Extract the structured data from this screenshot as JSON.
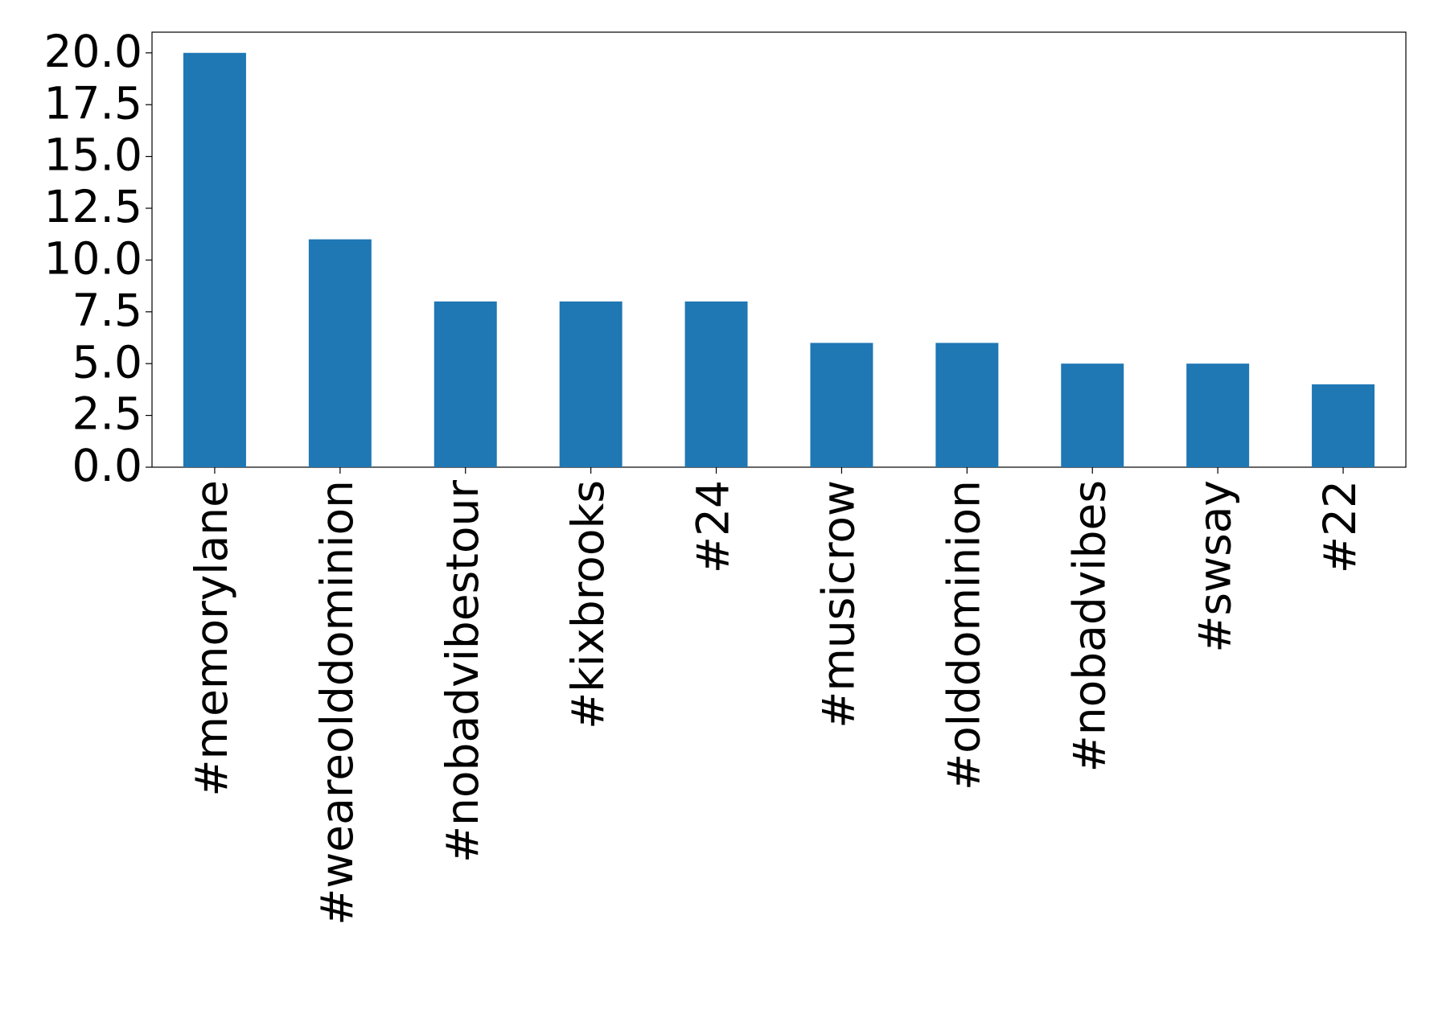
{
  "chart_data": {
    "type": "bar",
    "categories": [
      "#memorylane",
      "#weareolddominion",
      "#nobadvibestour",
      "#kixbrooks",
      "#24",
      "#musicrow",
      "#olddominion",
      "#nobadvibes",
      "#swsay",
      "#22"
    ],
    "values": [
      20,
      11,
      8,
      8,
      8,
      6,
      6,
      5,
      5,
      4
    ],
    "color": "#1f77b4",
    "ylim": [
      0,
      21
    ],
    "yticks": [
      {
        "value": 0,
        "label": "0.0"
      },
      {
        "value": 2.5,
        "label": "2.5"
      },
      {
        "value": 5,
        "label": "5.0"
      },
      {
        "value": 7.5,
        "label": "7.5"
      },
      {
        "value": 10,
        "label": "10.0"
      },
      {
        "value": 12.5,
        "label": "12.5"
      },
      {
        "value": 15,
        "label": "15.0"
      },
      {
        "value": 17.5,
        "label": "17.5"
      },
      {
        "value": 20,
        "label": "20.0"
      }
    ],
    "grid": false
  }
}
